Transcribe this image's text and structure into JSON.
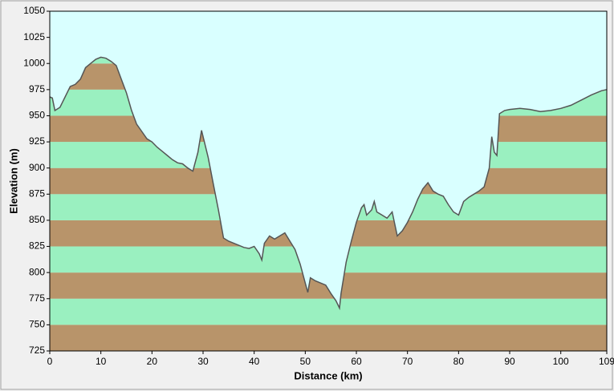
{
  "chart_data": {
    "type": "area",
    "x_label": "Distance  (km)",
    "y_label": "Elevation (m)",
    "x": [
      0,
      0.5,
      1,
      2,
      3,
      4,
      5,
      6,
      7,
      8,
      9,
      10,
      11,
      12,
      13,
      14,
      15,
      16,
      17,
      18,
      19,
      20,
      21,
      22,
      23,
      24,
      25,
      26,
      27,
      28,
      29,
      29.7,
      31,
      32,
      33,
      34,
      35,
      36,
      37,
      38,
      39,
      40,
      41,
      41.5,
      42,
      43,
      44,
      45,
      46,
      47,
      48,
      49,
      50,
      50.5,
      51,
      52,
      53,
      54,
      55,
      56,
      56.7,
      57,
      58,
      59,
      60,
      61,
      61.5,
      62,
      63,
      63.5,
      64,
      65,
      66,
      67,
      68,
      69,
      70,
      71,
      72,
      73,
      74,
      75,
      76,
      77,
      78,
      79,
      80,
      81,
      82,
      83,
      84,
      85,
      86,
      86.5,
      87,
      87.5,
      88,
      89,
      90,
      92,
      94,
      96,
      98,
      100,
      102,
      104,
      106,
      108,
      109
    ],
    "values": [
      968,
      967,
      955,
      958,
      968,
      978,
      980,
      985,
      996,
      1000,
      1004,
      1006,
      1005,
      1002,
      998,
      985,
      972,
      955,
      942,
      935,
      928,
      925,
      920,
      916,
      912,
      908,
      905,
      904,
      900,
      897,
      915,
      936,
      910,
      885,
      860,
      833,
      830,
      828,
      826,
      824,
      823,
      825,
      818,
      812,
      828,
      835,
      832,
      835,
      838,
      830,
      822,
      808,
      790,
      781,
      795,
      792,
      790,
      788,
      780,
      773,
      766,
      780,
      810,
      830,
      848,
      862,
      865,
      855,
      860,
      868,
      858,
      855,
      852,
      858,
      835,
      840,
      848,
      858,
      870,
      880,
      886,
      878,
      875,
      873,
      865,
      858,
      855,
      868,
      872,
      875,
      878,
      882,
      900,
      930,
      915,
      912,
      952,
      955,
      956,
      957,
      956,
      954,
      955,
      957,
      960,
      965,
      970,
      974,
      975
    ],
    "xlim": [
      0,
      109
    ],
    "xticks": [
      0,
      10,
      20,
      30,
      40,
      50,
      60,
      70,
      80,
      90,
      100,
      109
    ],
    "ylim": [
      725,
      1050
    ],
    "yticks": [
      725,
      750,
      775,
      800,
      825,
      850,
      875,
      900,
      925,
      950,
      975,
      1000,
      1025,
      1050
    ],
    "line_color": "#555555",
    "background": "#d9ffff",
    "band_colors": [
      "#b8946a",
      "#9af0c0"
    ]
  }
}
